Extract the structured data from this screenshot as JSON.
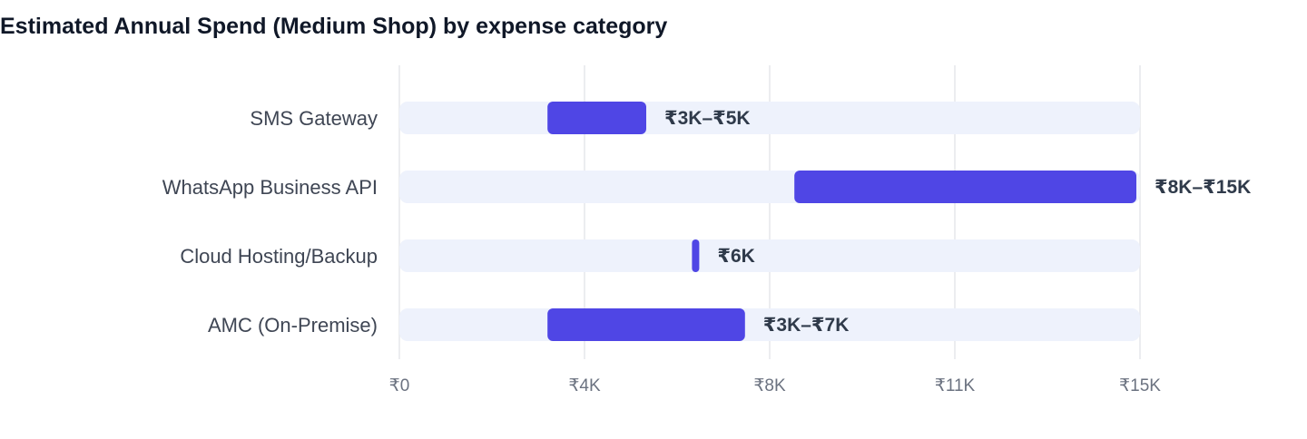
{
  "chart_data": {
    "type": "bar",
    "orientation": "horizontal",
    "title": "Estimated Annual Spend (Medium Shop) by expense category",
    "categories": [
      "SMS Gateway",
      "WhatsApp Business API",
      "Cloud Hosting/Backup",
      "AMC (On-Premise)"
    ],
    "ranges": [
      {
        "low": 3000,
        "high": 5000
      },
      {
        "low": 8000,
        "high": 15000
      },
      {
        "low": 6000,
        "high": 6000
      },
      {
        "low": 3000,
        "high": 7000
      }
    ],
    "data_labels": [
      "₹3K–₹5K",
      "₹8K–₹15K",
      "₹6K",
      "₹3K–₹7K"
    ],
    "xlim": [
      0,
      15000
    ],
    "x_ticks": [
      0,
      3750,
      7500,
      11250,
      15000
    ],
    "x_tick_labels": [
      "₹0",
      "₹4K",
      "₹8K",
      "₹11K",
      "₹15K"
    ],
    "grid": true,
    "colors": {
      "range_bar": "#4f46e5",
      "track": "#eef2fc",
      "grid": "#e5e7eb"
    }
  }
}
